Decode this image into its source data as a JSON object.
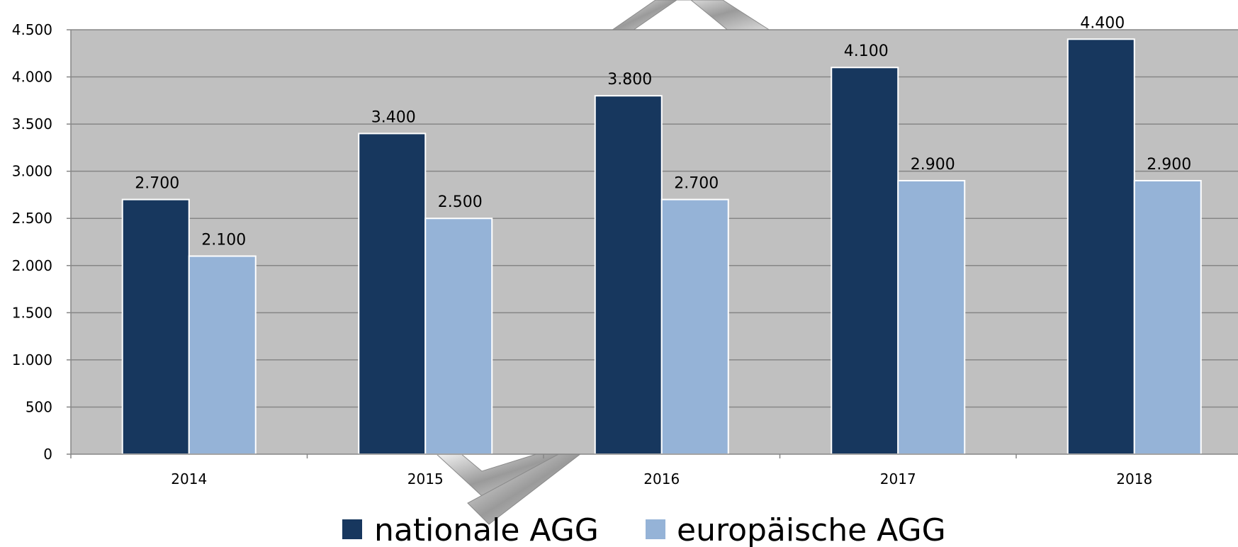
{
  "chart_data": {
    "type": "bar",
    "categories": [
      "2014",
      "2015",
      "2016",
      "2017",
      "2018"
    ],
    "series": [
      {
        "name": "nationale AGG",
        "values": [
          2700,
          3400,
          3800,
          4100,
          4400
        ],
        "labels": [
          "2.700",
          "3.400",
          "3.800",
          "4.100",
          "4.400"
        ],
        "color": "#17375e"
      },
      {
        "name": "europäische AGG",
        "values": [
          2100,
          2500,
          2700,
          2900,
          2900
        ],
        "labels": [
          "2.100",
          "2.500",
          "2.700",
          "2.900",
          "2.900"
        ],
        "color": "#95b3d7"
      }
    ],
    "yticks": [
      0,
      500,
      1000,
      1500,
      2000,
      2500,
      3000,
      3500,
      4000,
      4500
    ],
    "ytick_labels": [
      "0",
      "500",
      "1.000",
      "1.500",
      "2.000",
      "2.500",
      "3.000",
      "3.500",
      "4.000",
      "4.500"
    ],
    "ylim": [
      0,
      4500
    ],
    "grid": true,
    "legend_position": "bottom",
    "plot_background": "#c0c0c0",
    "gridline_color": "#868686",
    "title": "",
    "xlabel": "",
    "ylabel": ""
  }
}
